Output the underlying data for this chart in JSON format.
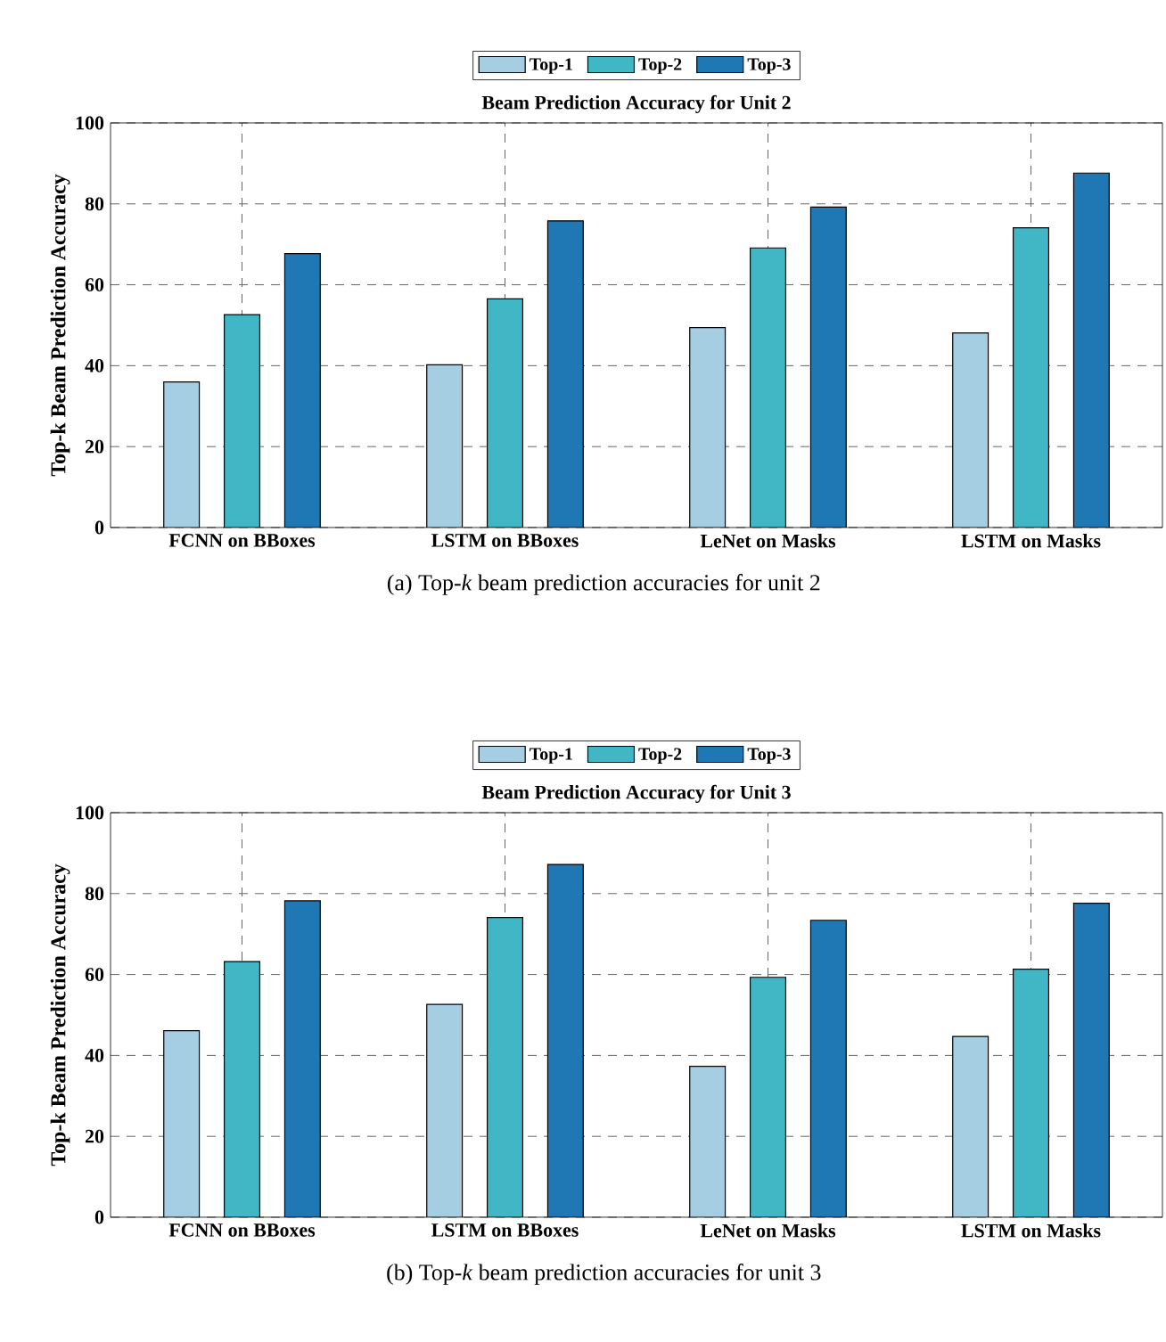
{
  "chart_data": [
    {
      "type": "bar",
      "title": "Beam Prediction Accuracy for Unit 2",
      "ylabel": "Top-k Beam Prediction Accuracy",
      "categories": [
        "FCNN on BBoxes",
        "LSTM on BBoxes",
        "LeNet on Masks",
        "LSTM on Masks"
      ],
      "series": [
        {
          "name": "Top-1",
          "color": "#a6cee3",
          "values": [
            36.0,
            40.2,
            49.4,
            48.1
          ]
        },
        {
          "name": "Top-2",
          "color": "#41b6c4",
          "values": [
            52.6,
            56.5,
            69.1,
            74.1
          ]
        },
        {
          "name": "Top-3",
          "color": "#1f78b4",
          "values": [
            67.7,
            75.8,
            79.2,
            87.6
          ]
        }
      ],
      "ylim": [
        0,
        100
      ],
      "yticks": [
        0,
        20,
        40,
        60,
        80,
        100
      ],
      "grid": true,
      "legend": "top",
      "annotations": [
        "(a) Top-*k* beam prediction accuracies for unit 2"
      ]
    },
    {
      "type": "bar",
      "title": "Beam Prediction Accuracy for Unit 3",
      "ylabel": "Top-k Beam Prediction Accuracy",
      "categories": [
        "FCNN on BBoxes",
        "LSTM on BBoxes",
        "LeNet on Masks",
        "LSTM on Masks"
      ],
      "series": [
        {
          "name": "Top-1",
          "color": "#a6cee3",
          "values": [
            46.1,
            52.6,
            37.3,
            44.7
          ]
        },
        {
          "name": "Top-2",
          "color": "#41b6c4",
          "values": [
            63.2,
            74.1,
            59.3,
            61.3
          ]
        },
        {
          "name": "Top-3",
          "color": "#1f78b4",
          "values": [
            78.2,
            87.2,
            73.4,
            77.6
          ]
        }
      ],
      "ylim": [
        0,
        100
      ],
      "yticks": [
        0,
        20,
        40,
        60,
        80,
        100
      ],
      "grid": true,
      "legend": "top",
      "annotations": [
        "(b) Top-*k* beam prediction accuracies for unit 3"
      ]
    }
  ]
}
